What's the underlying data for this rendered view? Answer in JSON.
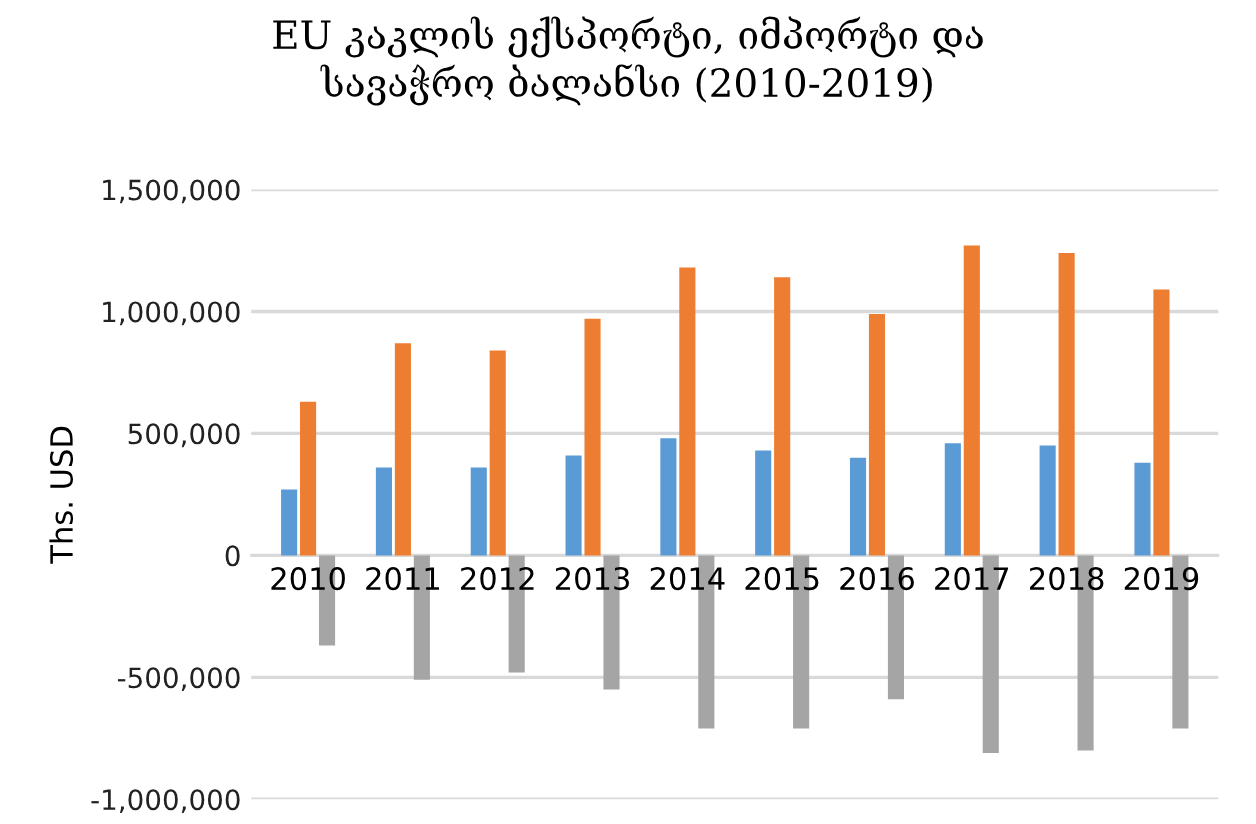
{
  "chart_data": {
    "type": "bar",
    "title": "EU კაკლის ექსპორტი, იმპორტი და\nსავაჭრო ბალანსი (2010-2019)",
    "ylabel": "Ths. USD",
    "categories": [
      "2010",
      "2011",
      "2012",
      "2013",
      "2014",
      "2015",
      "2016",
      "2017",
      "2018",
      "2019"
    ],
    "series": [
      {
        "color": "#5b9bd5",
        "values": [
          270000,
          360000,
          360000,
          410000,
          480000,
          430000,
          400000,
          460000,
          450000,
          380000
        ]
      },
      {
        "color": "#ed7d31",
        "values": [
          630000,
          870000,
          840000,
          970000,
          1180000,
          1140000,
          990000,
          1270000,
          1240000,
          1090000
        ]
      },
      {
        "color": "#a5a5a5",
        "values": [
          -370000,
          -510000,
          -480000,
          -550000,
          -710000,
          -710000,
          -590000,
          -810000,
          -800000,
          -710000
        ]
      }
    ],
    "ylim": [
      -1000000,
      1500000
    ],
    "yticks": [
      {
        "value": -1000000,
        "label": "-1,000,000"
      },
      {
        "value": -500000,
        "label": "-500,000"
      },
      0,
      {
        "value": 500000,
        "label": "500,000"
      },
      {
        "value": 1000000,
        "label": "1,000,000"
      },
      {
        "value": 1500000,
        "label": "1,500,000"
      }
    ],
    "grid": "y",
    "legend": false
  }
}
